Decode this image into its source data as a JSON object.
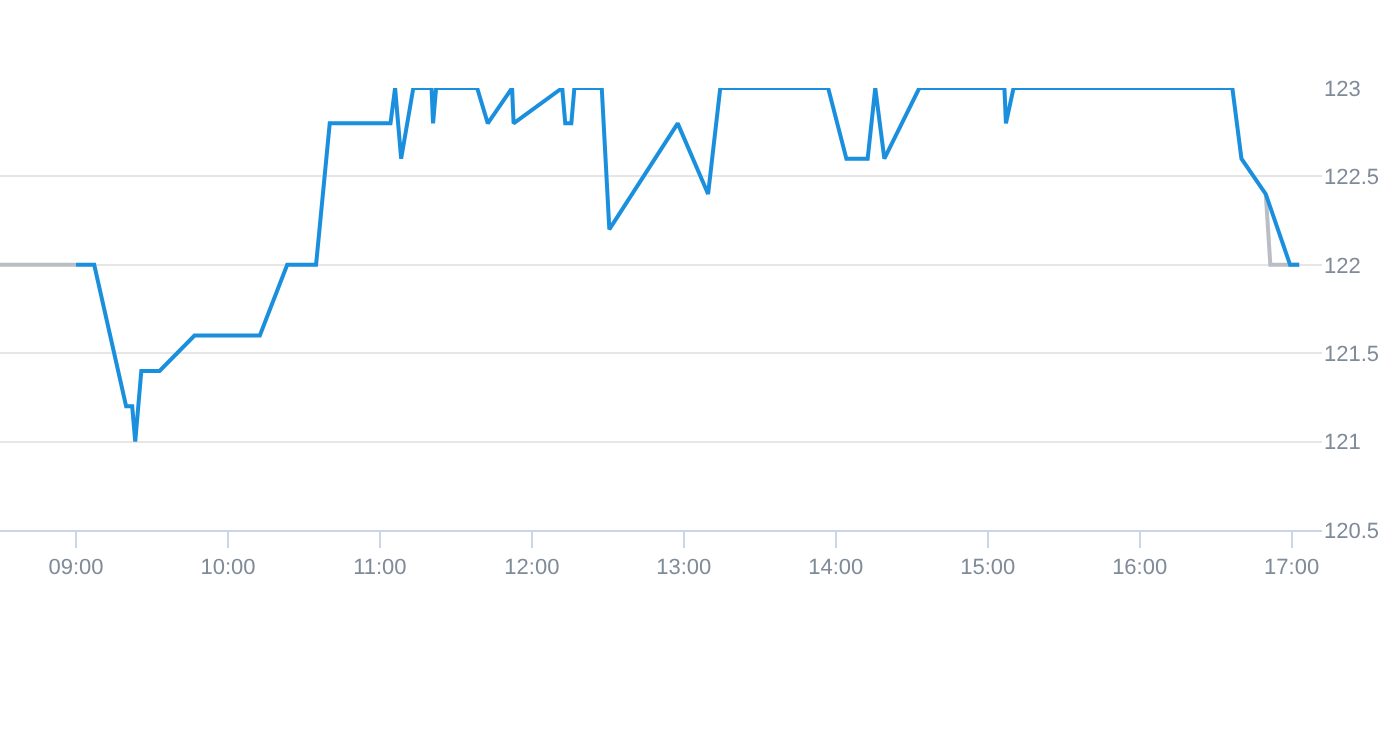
{
  "chart_data": {
    "type": "line",
    "xlim": [
      8.5,
      17.2
    ],
    "ylim": [
      120.5,
      123
    ],
    "xticks": [
      {
        "value": 9,
        "label": "09:00"
      },
      {
        "value": 10,
        "label": "10:00"
      },
      {
        "value": 11,
        "label": "11:00"
      },
      {
        "value": 12,
        "label": "12:00"
      },
      {
        "value": 13,
        "label": "13:00"
      },
      {
        "value": 14,
        "label": "14:00"
      },
      {
        "value": 15,
        "label": "15:00"
      },
      {
        "value": 16,
        "label": "16:00"
      },
      {
        "value": 17,
        "label": "17:00"
      }
    ],
    "yticks": [
      120.5,
      121,
      121.5,
      122,
      122.5,
      123
    ],
    "grid": "y",
    "marker": "none",
    "line_style": "solid",
    "series": [
      {
        "color": "#b8bec4",
        "x": [
          8.5,
          9.0,
          12.9,
          16.83,
          16.86,
          17.05
        ],
        "values": [
          122,
          122,
          null,
          122.4,
          122,
          122
        ]
      },
      {
        "color": "#1a8fdd",
        "x": [
          9.0,
          9.12,
          9.33,
          9.37,
          9.39,
          9.43,
          9.55,
          9.78,
          10.21,
          10.39,
          10.58,
          10.67,
          11.07,
          11.1,
          11.14,
          11.22,
          11.34,
          11.35,
          11.37,
          11.64,
          11.71,
          11.87,
          11.88,
          12.2,
          12.22,
          12.26,
          12.28,
          12.46,
          12.51,
          12.96,
          13.16,
          13.24,
          13.95,
          14.07,
          14.21,
          14.26,
          14.32,
          14.55,
          15.11,
          15.12,
          15.17,
          16.61,
          16.67,
          16.83,
          16.99,
          17.05
        ],
        "values": [
          122,
          122,
          121.2,
          121.2,
          121,
          121.4,
          121.4,
          121.6,
          121.6,
          122,
          122,
          122.8,
          122.8,
          123,
          122.6,
          123,
          123,
          122.8,
          123,
          123,
          122.8,
          123,
          122.8,
          123,
          122.8,
          122.8,
          123,
          123,
          122.2,
          122.8,
          122.4,
          123,
          123,
          122.6,
          122.6,
          123,
          122.6,
          123,
          123,
          122.8,
          123,
          123,
          122.6,
          122.4,
          122,
          122
        ]
      }
    ]
  }
}
